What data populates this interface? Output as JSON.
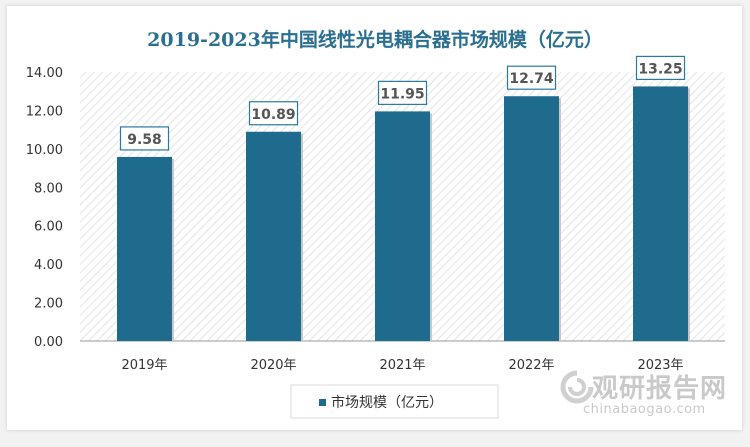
{
  "chart_data": {
    "type": "bar",
    "title": "2019-2023年中国线性光电耦合器市场规模（亿元）",
    "categories": [
      "2019年",
      "2020年",
      "2021年",
      "2022年",
      "2023年"
    ],
    "series": [
      {
        "name": "市场规模（亿元）",
        "values": [
          9.58,
          10.89,
          11.95,
          12.74,
          13.25
        ]
      }
    ],
    "data_labels": [
      "9.58",
      "10.89",
      "11.95",
      "12.74",
      "13.25"
    ],
    "yticks": [
      "0.00",
      "2.00",
      "4.00",
      "6.00",
      "8.00",
      "10.00",
      "12.00",
      "14.00"
    ],
    "ylim": [
      0,
      14
    ],
    "xlabel": "",
    "ylabel": "",
    "grid": false,
    "legend": "bottom",
    "colors": {
      "bar": "#1f6b8e",
      "title": "#2a6f8f",
      "label_border": "#2a7aa0"
    }
  },
  "watermark": {
    "cn": "观研报告网",
    "en": "chinabaogao.com"
  }
}
